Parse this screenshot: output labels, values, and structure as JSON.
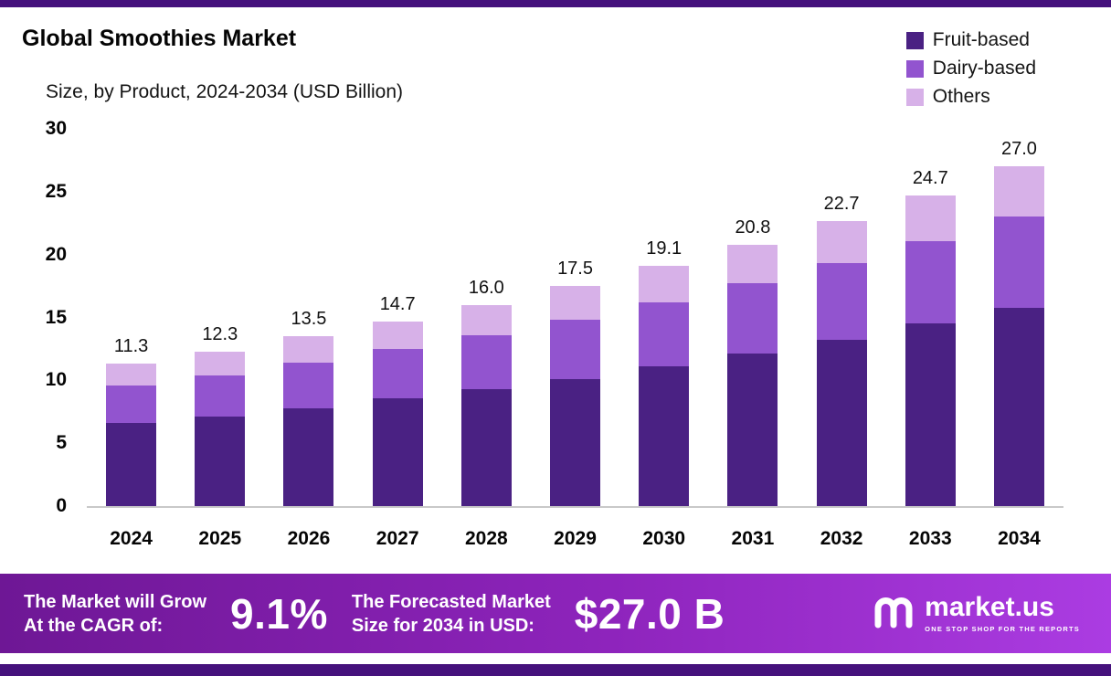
{
  "page": {
    "title": "Global Smoothies Market",
    "subtitle": "Size, by Product, 2024-2034 (USD Billion)"
  },
  "colors": {
    "fruit_based": "#4a2183",
    "dairy_based": "#9254cf",
    "others": "#d7b1e8",
    "border_strip": "#45117c",
    "banner_gradient_left": "#6e1795",
    "banner_gradient_right": "#ab3ce2",
    "axis_line": "#c8c8c8"
  },
  "legend": [
    {
      "label": "Fruit-based",
      "color": "#4a2183"
    },
    {
      "label": "Dairy-based",
      "color": "#9254cf"
    },
    {
      "label": "Others",
      "color": "#d7b1e8"
    }
  ],
  "chart_data": {
    "type": "bar",
    "stacked": true,
    "title": "Global Smoothies Market Size, by Product, 2024-2034 (USD Billion)",
    "categories": [
      "2024",
      "2025",
      "2026",
      "2027",
      "2028",
      "2029",
      "2030",
      "2031",
      "2032",
      "2033",
      "2034"
    ],
    "series": [
      {
        "name": "Fruit-based",
        "color": "#4a2183",
        "values": [
          6.6,
          7.1,
          7.8,
          8.6,
          9.3,
          10.1,
          11.1,
          12.1,
          13.2,
          14.5,
          15.8
        ]
      },
      {
        "name": "Dairy-based",
        "color": "#9254cf",
        "values": [
          3.0,
          3.3,
          3.6,
          3.9,
          4.3,
          4.7,
          5.1,
          5.6,
          6.1,
          6.6,
          7.2
        ]
      },
      {
        "name": "Others",
        "color": "#d7b1e8",
        "values": [
          1.7,
          1.9,
          2.1,
          2.2,
          2.4,
          2.7,
          2.9,
          3.1,
          3.4,
          3.6,
          4.0
        ]
      }
    ],
    "totals": [
      11.3,
      12.3,
      13.5,
      14.7,
      16.0,
      17.5,
      19.1,
      20.8,
      22.7,
      24.7,
      27.0
    ],
    "total_labels": [
      "11.3",
      "12.3",
      "13.5",
      "14.7",
      "16.0",
      "17.5",
      "19.1",
      "20.8",
      "22.7",
      "24.7",
      "27.0"
    ],
    "xlabel": "",
    "ylabel": "",
    "ylim": [
      0,
      30
    ],
    "yticks": [
      0,
      5,
      10,
      15,
      20,
      25,
      30
    ],
    "grid": false,
    "legend_position": "top-right"
  },
  "banner": {
    "growth_label_line1": "The Market will Grow",
    "growth_label_line2": "At the CAGR of:",
    "cagr_value": "9.1%",
    "forecast_label_line1": "The Forecasted Market",
    "forecast_label_line2": "Size for 2034 in USD:",
    "forecast_value": "$27.0 B",
    "brand": "market.us",
    "brand_tagline": "ONE STOP SHOP FOR THE REPORTS"
  }
}
